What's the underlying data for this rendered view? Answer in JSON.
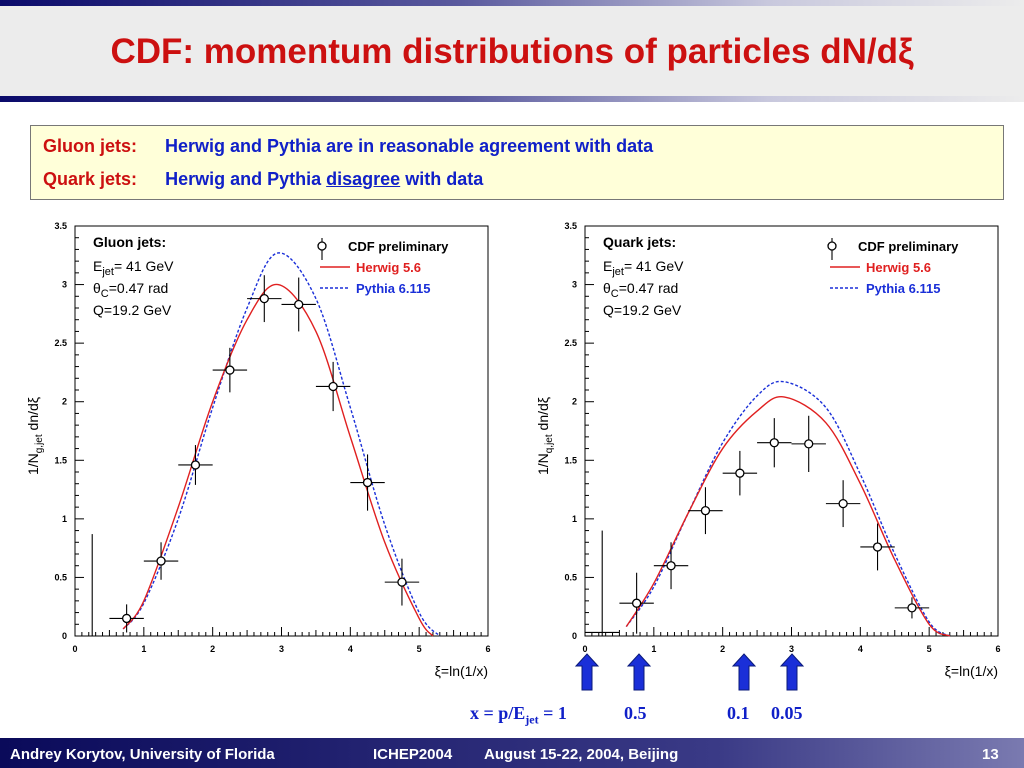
{
  "slide": {
    "title": "CDF: momentum distributions of particles dN/dξ",
    "info": {
      "gluon_label": "Gluon jets:",
      "gluon_text": "Herwig and Pythia are in reasonable agreement with data",
      "quark_label": "Quark jets:",
      "quark_text_pre": "Herwig and Pythia",
      "quark_text_emph": "disagree",
      "quark_text_post": "with data"
    },
    "footer": {
      "author": "Andrey Korytov, University of Florida",
      "conf": "ICHEP2004",
      "dates": "August 15-22, 2004, Beijing",
      "page": "13"
    },
    "arrows": {
      "labels": [
        "x = p/E",
        "jet",
        " = 1",
        "0.5",
        "0.1",
        "0.05"
      ],
      "color": "#1a2fd8"
    }
  },
  "chart_data": [
    {
      "type": "scatter",
      "panel_label": "Gluon jets:",
      "params": [
        "E",
        "jet",
        "= 41 GeV",
        "θ",
        "C",
        "=0.47 rad",
        "Q=19.2 GeV"
      ],
      "xlabel": "ξ=ln(1/x)",
      "ylabel_parts": [
        "1/N",
        "g,jet",
        " dn/dξ"
      ],
      "xlim": [
        0,
        6
      ],
      "ylim": [
        0,
        3.5
      ],
      "xticks": [
        "0",
        "1",
        "2",
        "3",
        "4",
        "5",
        "6"
      ],
      "yticks": [
        "0",
        "0.5",
        "1",
        "1.5",
        "2",
        "2.5",
        "3",
        "3.5"
      ],
      "legend": {
        "data": "CDF preliminary",
        "herwig": "Herwig 5.6",
        "pythia": "Pythia 6.115"
      },
      "colors": {
        "herwig": "#e02020",
        "pythia": "#1a2fd8",
        "data": "#000000"
      },
      "data_points": [
        {
          "x": 0.25,
          "y": 0.0,
          "ex": 0.25,
          "ey_lo": 0.0,
          "ey_hi": 0.87,
          "marker": false
        },
        {
          "x": 0.75,
          "y": 0.15,
          "ex": 0.25,
          "ey": 0.12
        },
        {
          "x": 1.25,
          "y": 0.64,
          "ex": 0.25,
          "ey": 0.16
        },
        {
          "x": 1.75,
          "y": 1.46,
          "ex": 0.25,
          "ey": 0.17
        },
        {
          "x": 2.25,
          "y": 2.27,
          "ex": 0.25,
          "ey": 0.19
        },
        {
          "x": 2.75,
          "y": 2.88,
          "ex": 0.25,
          "ey": 0.2
        },
        {
          "x": 3.25,
          "y": 2.83,
          "ex": 0.25,
          "ey": 0.23
        },
        {
          "x": 3.75,
          "y": 2.13,
          "ex": 0.25,
          "ey": 0.21
        },
        {
          "x": 4.25,
          "y": 1.31,
          "ex": 0.25,
          "ey": 0.24
        },
        {
          "x": 4.75,
          "y": 0.46,
          "ex": 0.25,
          "ey": 0.2
        }
      ],
      "herwig": {
        "x": [
          0.7,
          1.0,
          1.5,
          2.0,
          2.5,
          2.95,
          3.5,
          4.0,
          4.5,
          5.0,
          5.2
        ],
        "y": [
          0.06,
          0.3,
          1.1,
          2.0,
          2.7,
          3.0,
          2.6,
          1.7,
          0.8,
          0.15,
          0.0
        ]
      },
      "pythia": {
        "x": [
          0.7,
          1.0,
          1.5,
          2.0,
          2.5,
          2.95,
          3.5,
          4.0,
          4.5,
          5.0,
          5.3
        ],
        "y": [
          0.06,
          0.28,
          1.0,
          1.95,
          2.8,
          3.27,
          2.88,
          1.95,
          0.95,
          0.2,
          0.0
        ]
      }
    },
    {
      "type": "scatter",
      "panel_label": "Quark jets:",
      "params": [
        "E",
        "jet",
        "= 41 GeV",
        "θ",
        "C",
        "=0.47 rad",
        "Q=19.2 GeV"
      ],
      "xlabel": "ξ=ln(1/x)",
      "ylabel_parts": [
        "1/N",
        "q,jet",
        " dn/dξ"
      ],
      "xlim": [
        0,
        6
      ],
      "ylim": [
        0,
        3.5
      ],
      "xticks": [
        "0",
        "1",
        "2",
        "3",
        "4",
        "5",
        "6"
      ],
      "yticks": [
        "0",
        "0.5",
        "1",
        "1.5",
        "2",
        "2.5",
        "3",
        "3.5"
      ],
      "legend": {
        "data": "CDF preliminary",
        "herwig": "Herwig 5.6",
        "pythia": "Pythia 6.115"
      },
      "colors": {
        "herwig": "#e02020",
        "pythia": "#1a2fd8",
        "data": "#000000"
      },
      "data_points": [
        {
          "x": 0.25,
          "y": 0.03,
          "ex": 0.25,
          "ey_lo": 0.03,
          "ey_hi": 0.87,
          "marker": false
        },
        {
          "x": 0.75,
          "y": 0.28,
          "ex": 0.25,
          "ey": 0.26
        },
        {
          "x": 1.25,
          "y": 0.6,
          "ex": 0.25,
          "ey": 0.2
        },
        {
          "x": 1.75,
          "y": 1.07,
          "ex": 0.25,
          "ey": 0.2
        },
        {
          "x": 2.25,
          "y": 1.39,
          "ex": 0.25,
          "ey": 0.19
        },
        {
          "x": 2.75,
          "y": 1.65,
          "ex": 0.25,
          "ey": 0.21
        },
        {
          "x": 3.25,
          "y": 1.64,
          "ex": 0.25,
          "ey": 0.24
        },
        {
          "x": 3.75,
          "y": 1.13,
          "ex": 0.25,
          "ey": 0.2
        },
        {
          "x": 4.25,
          "y": 0.76,
          "ex": 0.25,
          "ey": 0.2
        },
        {
          "x": 4.75,
          "y": 0.24,
          "ex": 0.25,
          "ey": 0.09
        }
      ],
      "herwig": {
        "x": [
          0.6,
          1.0,
          1.5,
          2.0,
          2.5,
          2.9,
          3.5,
          4.0,
          4.5,
          5.0,
          5.3
        ],
        "y": [
          0.08,
          0.45,
          1.05,
          1.6,
          1.92,
          2.04,
          1.82,
          1.3,
          0.65,
          0.1,
          0.0
        ]
      },
      "pythia": {
        "x": [
          0.6,
          1.0,
          1.5,
          2.0,
          2.5,
          2.9,
          3.5,
          4.0,
          4.5,
          5.0,
          5.3
        ],
        "y": [
          0.08,
          0.42,
          1.05,
          1.65,
          2.05,
          2.17,
          1.95,
          1.38,
          0.7,
          0.12,
          0.0
        ]
      }
    }
  ]
}
